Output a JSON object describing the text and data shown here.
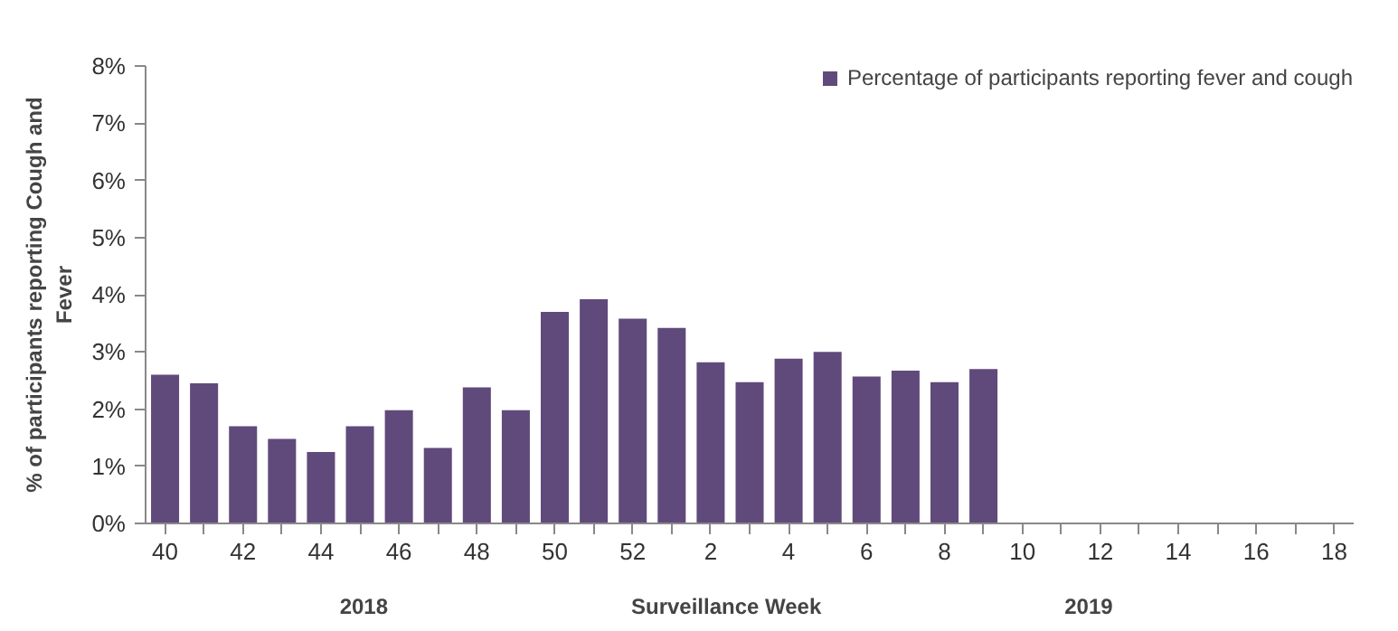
{
  "chart_data": {
    "type": "bar",
    "categories": [
      "40",
      null,
      "42",
      null,
      "44",
      null,
      "46",
      null,
      "48",
      null,
      "50",
      null,
      "52",
      null,
      "2",
      null,
      "4",
      null,
      "6",
      null,
      "8",
      null,
      "10",
      null,
      "12",
      null,
      "14",
      null,
      "16",
      null,
      "18"
    ],
    "series": [
      {
        "name": "Percentage of participants reporting fever and cough",
        "color": "#604a7b",
        "values": [
          2.6,
          2.45,
          1.7,
          1.48,
          1.25,
          1.7,
          1.98,
          1.32,
          2.38,
          1.98,
          3.7,
          3.92,
          3.58,
          3.42,
          2.82,
          2.47,
          2.88,
          3.0,
          2.57,
          2.67,
          2.47,
          2.7,
          null,
          null,
          null,
          null,
          null,
          null,
          null,
          null,
          null
        ]
      }
    ],
    "xlabel": "Surveillance Week",
    "ylabel": "% of participants reporting Cough and\nFever",
    "ylim": [
      0,
      8
    ],
    "yticks": [
      {
        "value": 0,
        "label": "0%"
      },
      {
        "value": 1,
        "label": "1%"
      },
      {
        "value": 2,
        "label": "2%"
      },
      {
        "value": 3,
        "label": "3%"
      },
      {
        "value": 4,
        "label": "4%"
      },
      {
        "value": 5,
        "label": "5%"
      },
      {
        "value": 6,
        "label": "6%"
      },
      {
        "value": 7,
        "label": "7%"
      },
      {
        "value": 8,
        "label": "8%"
      }
    ],
    "annotations": [
      "2018",
      "2019"
    ],
    "grid": false,
    "legend": "top right"
  }
}
